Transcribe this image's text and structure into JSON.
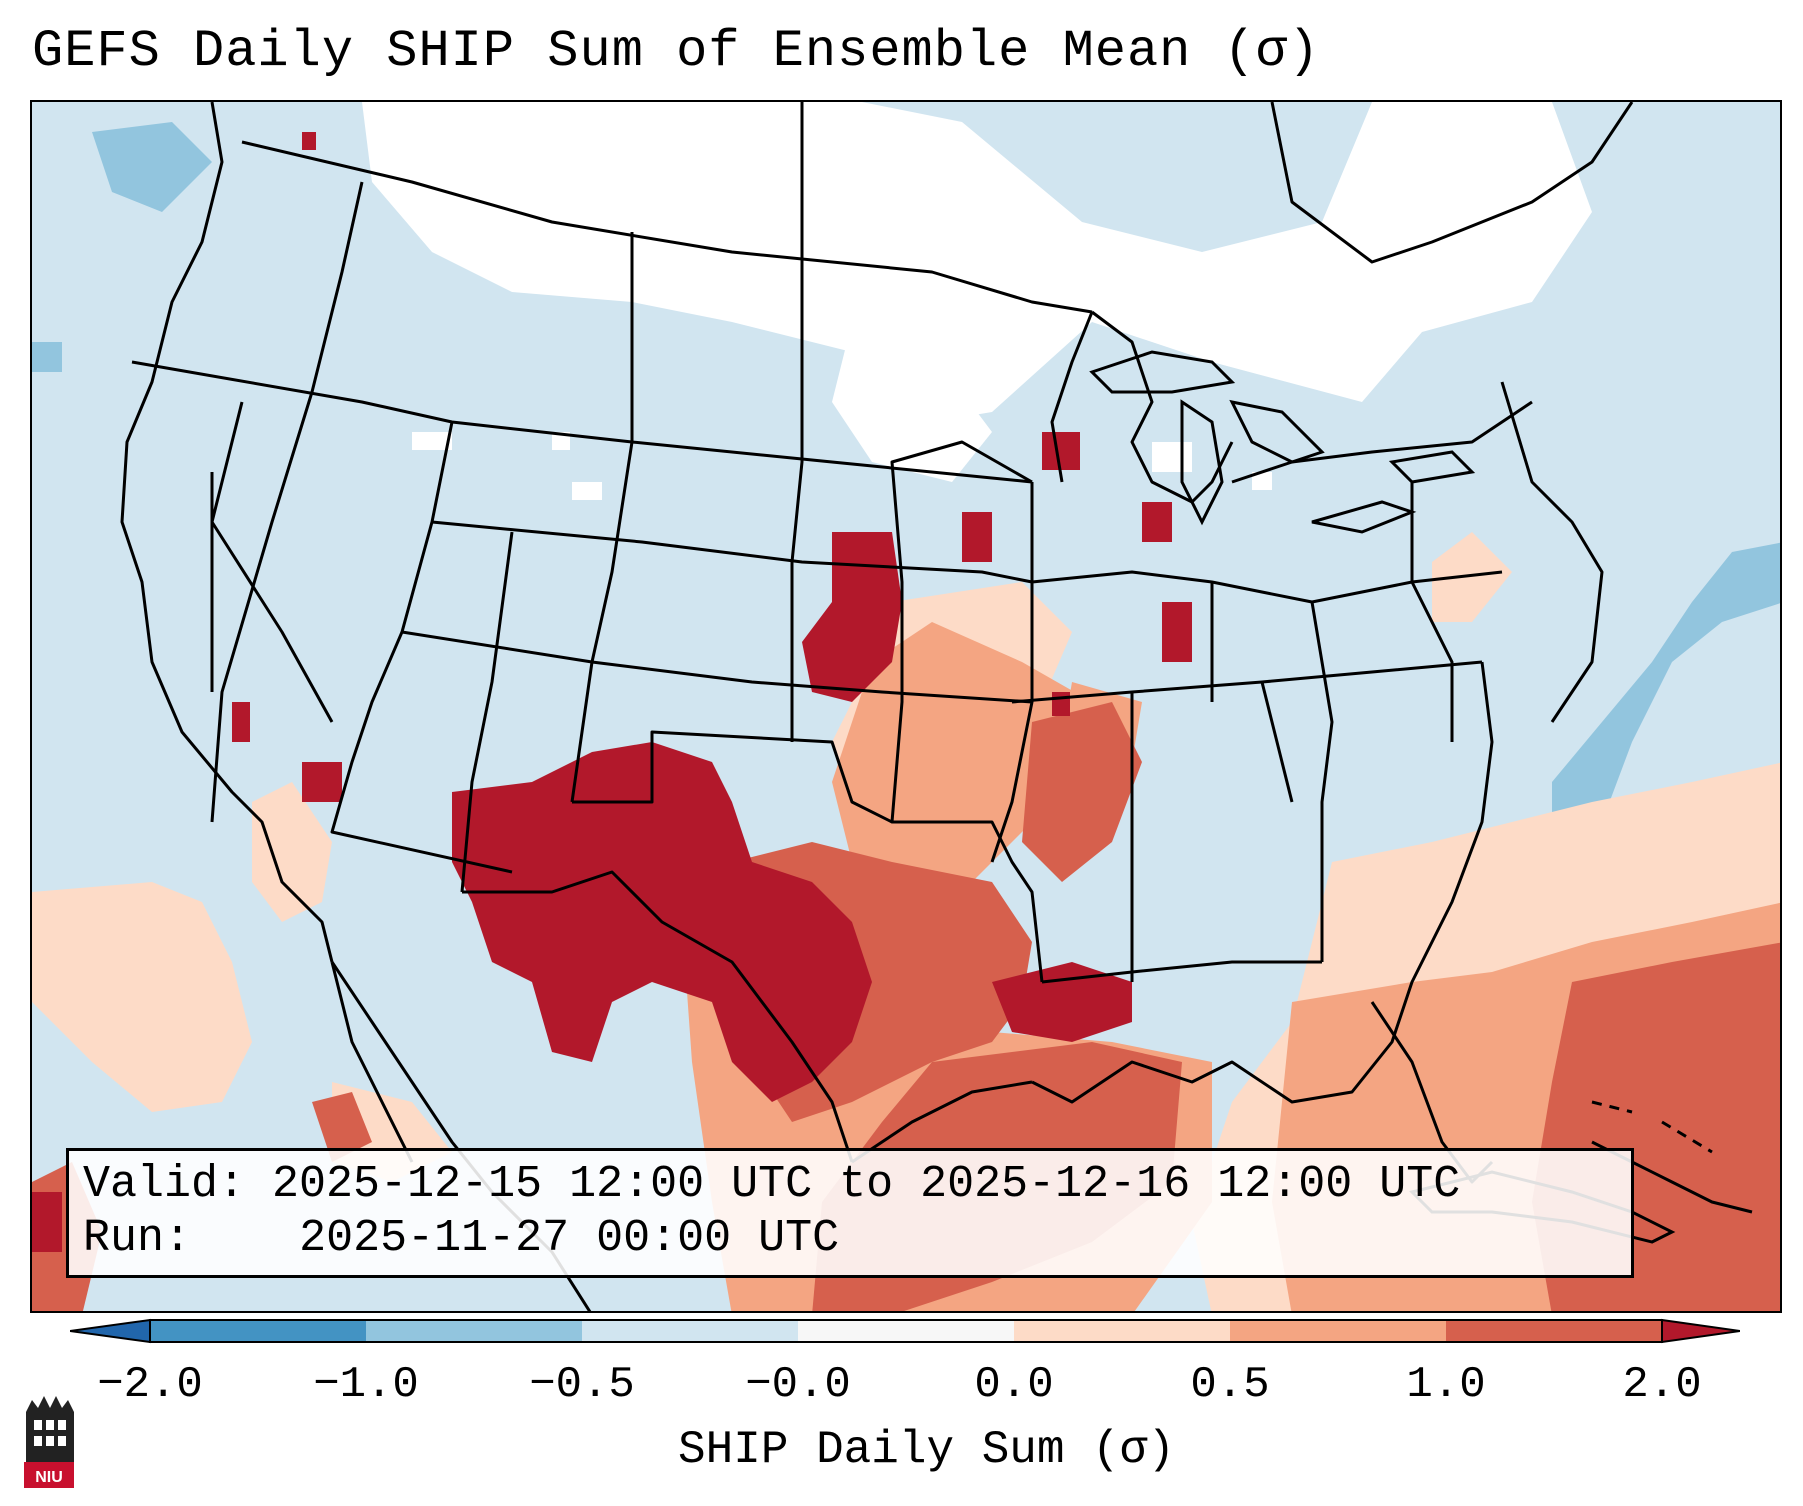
{
  "title": "GEFS Daily SHIP Sum of Ensemble Mean (σ)",
  "info": {
    "valid_label": "Valid:",
    "valid_value": "2025-12-15 12:00 UTC to 2025-12-16 12:00 UTC",
    "run_label": "Run:",
    "run_value": "2025-11-27 00:00 UTC"
  },
  "colorbar": {
    "label": "SHIP Daily Sum (σ)",
    "ticks": [
      "−2.0",
      "−1.0",
      "−0.5",
      "−0.0",
      "0.0",
      "0.5",
      "1.0",
      "2.0"
    ],
    "colors": [
      "#2166ac",
      "#4393c3",
      "#92c5de",
      "#d1e5f0",
      "#f7f7f7",
      "#fddbc7",
      "#f4a582",
      "#d6604d",
      "#b2182b"
    ]
  },
  "logo": {
    "text": "NIU"
  },
  "legend_colors": {
    "ocean_neutral": "#d1e5f0",
    "neg_light": "#92c5de",
    "zero": "#ffffff",
    "pos_light": "#fddbc7",
    "pos_mid": "#f4a582",
    "pos_high": "#d6604d",
    "pos_max": "#b2182b"
  }
}
